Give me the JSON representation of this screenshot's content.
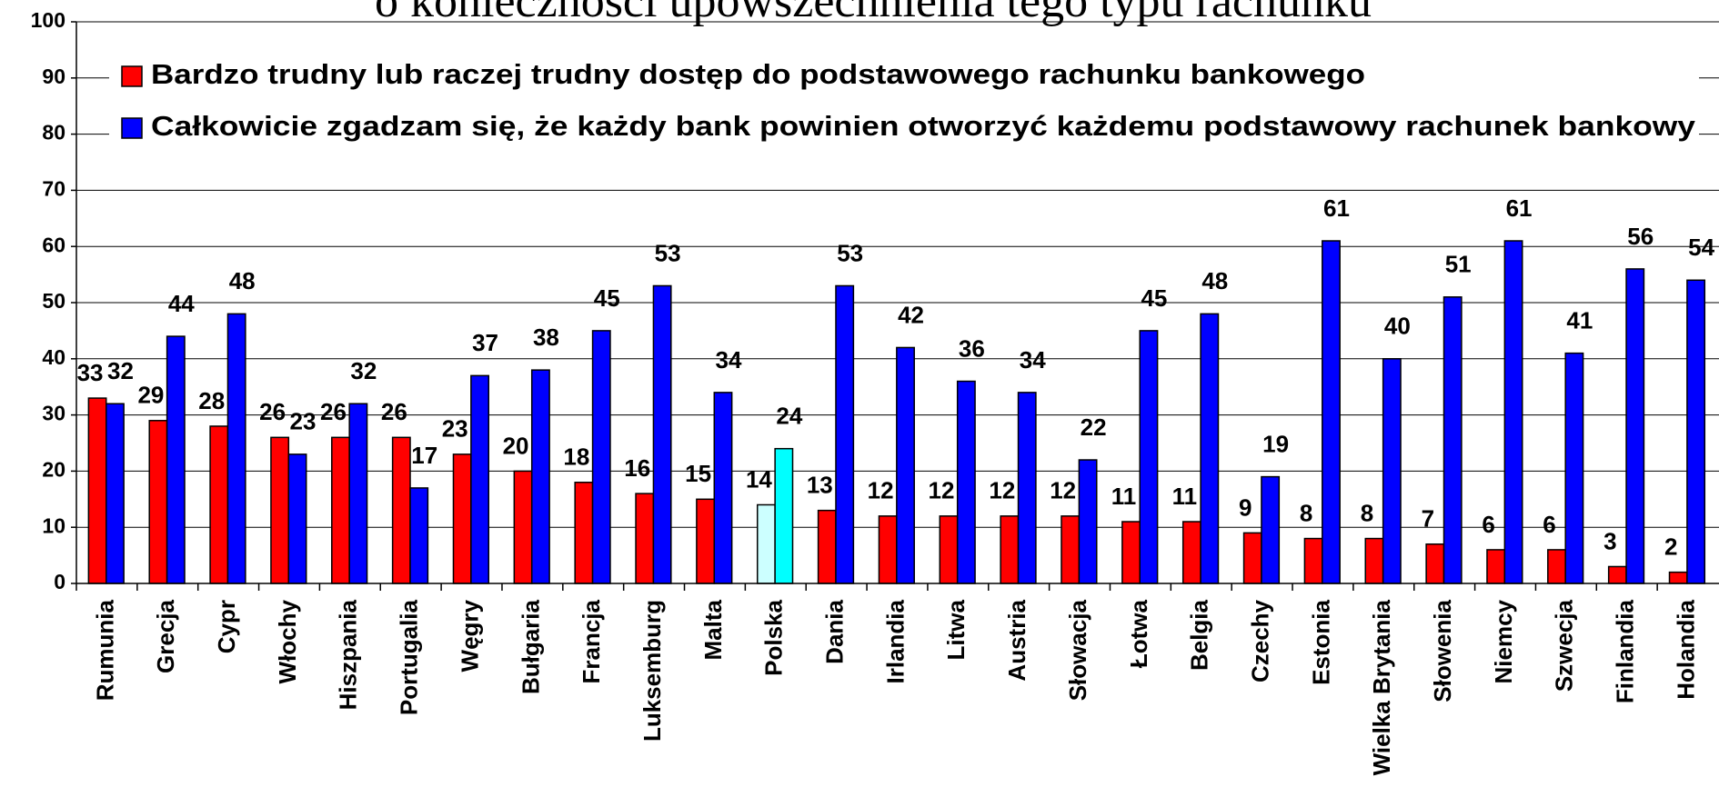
{
  "chart_data": {
    "type": "bar",
    "title": "o konieczności upowszechnienia tego typu rachunku",
    "categories": [
      "Rumunia",
      "Grecja",
      "Cypr",
      "Włochy",
      "Hiszpania",
      "Portugalia",
      "Węgry",
      "Bułgaria",
      "Francja",
      "Luksemburg",
      "Malta",
      "Polska",
      "Dania",
      "Irlandia",
      "Litwa",
      "Austria",
      "Słowacja",
      "Łotwa",
      "Belgia",
      "Czechy",
      "Estonia",
      "Wielka Brytania",
      "Słowenia",
      "Niemcy",
      "Szwecja",
      "Finlandia",
      "Holandia"
    ],
    "series": [
      {
        "name": "Bardzo trudny lub raczej trudny dostęp do podstawowego rachunku bankowego",
        "color": "#ff0000",
        "colors": [
          "#ff0000",
          "#ff0000",
          "#ff0000",
          "#ff0000",
          "#ff0000",
          "#ff0000",
          "#ff0000",
          "#ff0000",
          "#ff0000",
          "#ff0000",
          "#ff0000",
          "#ccffff",
          "#ff0000",
          "#ff0000",
          "#ff0000",
          "#ff0000",
          "#ff0000",
          "#ff0000",
          "#ff0000",
          "#ff0000",
          "#ff0000",
          "#ff0000",
          "#ff0000",
          "#ff0000",
          "#ff0000",
          "#ff0000",
          "#ff0000"
        ],
        "values": [
          33,
          29,
          28,
          26,
          26,
          26,
          23,
          20,
          18,
          16,
          15,
          14,
          13,
          12,
          12,
          12,
          12,
          11,
          11,
          9,
          8,
          8,
          7,
          6,
          6,
          3,
          2
        ]
      },
      {
        "name": "Całkowicie zgadzam się, że każdy bank powinien otworzyć każdemu podstawowy rachunek bankowy",
        "color": "#0000ff",
        "colors": [
          "#0000ff",
          "#0000ff",
          "#0000ff",
          "#0000ff",
          "#0000ff",
          "#0000ff",
          "#0000ff",
          "#0000ff",
          "#0000ff",
          "#0000ff",
          "#0000ff",
          "#00ffff",
          "#0000ff",
          "#0000ff",
          "#0000ff",
          "#0000ff",
          "#0000ff",
          "#0000ff",
          "#0000ff",
          "#0000ff",
          "#0000ff",
          "#0000ff",
          "#0000ff",
          "#0000ff",
          "#0000ff",
          "#0000ff",
          "#0000ff"
        ],
        "values": [
          32,
          44,
          48,
          23,
          32,
          17,
          37,
          38,
          45,
          53,
          34,
          24,
          53,
          42,
          36,
          34,
          22,
          45,
          48,
          19,
          61,
          40,
          51,
          61,
          41,
          56,
          54
        ]
      }
    ],
    "ylim": [
      0,
      100
    ],
    "yticks": [
      0,
      10,
      20,
      30,
      40,
      50,
      60,
      70,
      80,
      90,
      100
    ],
    "grid": true,
    "legend": "top-left"
  }
}
